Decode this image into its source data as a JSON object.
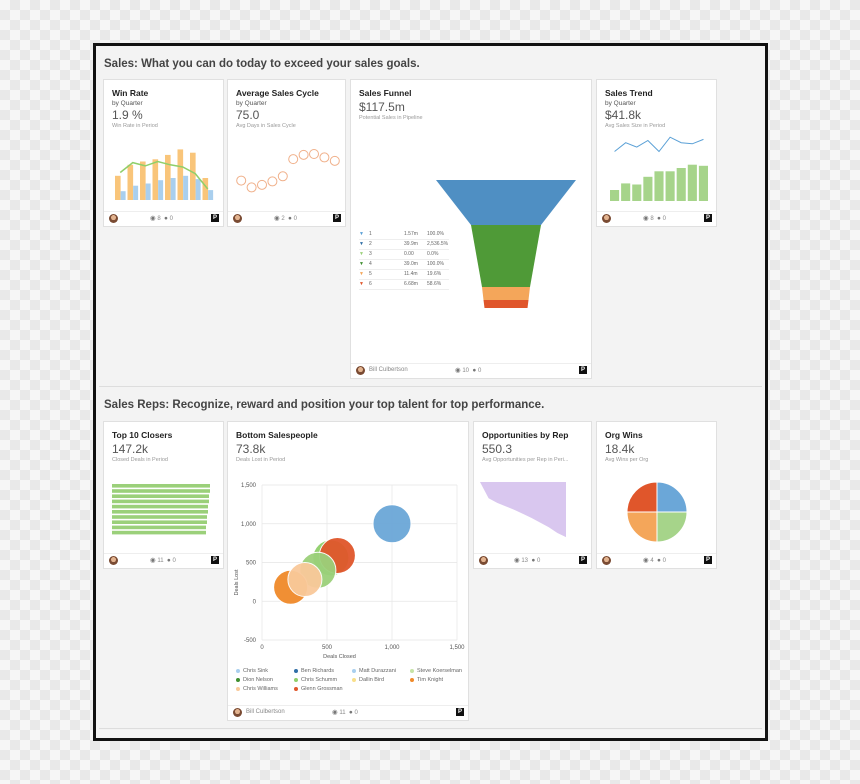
{
  "sections": {
    "sales": {
      "title": "Sales: What you can do today to exceed your sales goals."
    },
    "reps": {
      "title": "Sales Reps: Recognize, reward and position your top talent for top performance."
    }
  },
  "cards": {
    "win_rate": {
      "title": "Win Rate",
      "subtitle": "by Quarter",
      "value": "1.9 %",
      "desc": "Win Rate in Period",
      "views": "8",
      "comments": "0"
    },
    "avg_cycle": {
      "title": "Average Sales Cycle",
      "subtitle": "by Quarter",
      "value": "75.0",
      "desc": "Avg Days in Sales Cycle",
      "views": "2",
      "comments": "0"
    },
    "funnel": {
      "title": "Sales Funnel",
      "value": "$117.5m",
      "desc": "Potential Sales in Pipeline",
      "author": "Bill Culbertson",
      "views": "10",
      "comments": "0",
      "rows": [
        {
          "stage": "1",
          "amount": "1.57m",
          "pct": "100.0%",
          "color": "#5aa0d6"
        },
        {
          "stage": "2",
          "amount": "39.9m",
          "pct": "2,536.5%",
          "color": "#2f6ea6"
        },
        {
          "stage": "3",
          "amount": "0.00",
          "pct": "0.0%",
          "color": "#9bd07a"
        },
        {
          "stage": "4",
          "amount": "39.0m",
          "pct": "100.0%",
          "color": "#3f8f2f"
        },
        {
          "stage": "5",
          "amount": "11.4m",
          "pct": "19.6%",
          "color": "#f4a65a"
        },
        {
          "stage": "6",
          "amount": "6.68m",
          "pct": "58.6%",
          "color": "#e0562b"
        }
      ]
    },
    "trend": {
      "title": "Sales Trend",
      "subtitle": "by Quarter",
      "value": "$41.8k",
      "desc": "Avg Sales Size in Period",
      "views": "8",
      "comments": "0"
    },
    "top10": {
      "title": "Top 10 Closers",
      "value": "147.2k",
      "desc": "Closed Deals in Period",
      "views": "11",
      "comments": "0"
    },
    "bottom": {
      "title": "Bottom Salespeople",
      "value": "73.8k",
      "desc": "Deals Lost in Period",
      "author": "Bill Culbertson",
      "views": "11",
      "comments": "0",
      "xlabel": "Deals Closed",
      "ylabel": "Deals Lost",
      "legend": [
        {
          "name": "Chris Sink",
          "color": "#a9cfee"
        },
        {
          "name": "Ben Richards",
          "color": "#2f6ea6"
        },
        {
          "name": "Matt Durazzani",
          "color": "#a9cfee"
        },
        {
          "name": "Steve Koerselman",
          "color": "#c6e3a6"
        },
        {
          "name": "Dion Nelson",
          "color": "#3f8f2f"
        },
        {
          "name": "Chris Schumm",
          "color": "#8fcf6a"
        },
        {
          "name": "Dallin Bird",
          "color": "#f9df8a"
        },
        {
          "name": "Tim Knight",
          "color": "#f08a2a"
        },
        {
          "name": "Chris Williams",
          "color": "#f9c99a"
        },
        {
          "name": "Glenn Grossman",
          "color": "#e0562b"
        }
      ]
    },
    "opps": {
      "title": "Opportunities by Rep",
      "value": "550.3",
      "desc": "Avg Opportunities per Rep in Peri...",
      "views": "13",
      "comments": "0"
    },
    "org": {
      "title": "Org Wins",
      "value": "18.4k",
      "desc": "Avg Wins per Org",
      "views": "4",
      "comments": "0"
    }
  },
  "footer": {
    "badge": "P"
  },
  "chart_data": [
    {
      "type": "bar",
      "chart": "win_rate",
      "values": [
        2.2,
        3.2,
        3.5,
        3.7,
        4.1,
        4.6,
        4.3,
        2.0
      ],
      "values2": [
        0.8,
        1.3,
        1.5,
        1.8,
        2.0,
        2.2,
        1.9,
        0.9
      ],
      "line": [
        2.5,
        3.4,
        3.1,
        3.5,
        3.2,
        3.0,
        2.4,
        1.0
      ],
      "colors": [
        "#f9c57a",
        "#a9cfee",
        "#8fcf6a"
      ]
    },
    {
      "type": "scatter",
      "chart": "avg_cycle",
      "x": [
        1,
        2,
        3,
        4,
        5,
        6,
        7,
        8,
        9,
        10
      ],
      "y": [
        25,
        17,
        20,
        24,
        30,
        50,
        55,
        56,
        52,
        48
      ],
      "color": "#f0b08a"
    },
    {
      "type": "bar",
      "chart": "trend",
      "values": [
        1.0,
        1.6,
        1.5,
        2.2,
        2.7,
        2.7,
        3.0,
        3.3,
        3.2
      ],
      "line": [
        4.5,
        5.3,
        4.9,
        5.5,
        4.5,
        5.8,
        5.3,
        5.2,
        5.6
      ],
      "color": "#a6d48a",
      "linecolor": "#5aa0d6"
    },
    {
      "type": "bar",
      "chart": "top10",
      "orientation": "horizontal",
      "values": [
        98,
        98,
        97,
        97,
        96,
        96,
        95,
        95,
        94,
        94
      ],
      "color": "#9bd07a"
    },
    {
      "type": "scatter",
      "chart": "bottom",
      "xlim": [
        0,
        1500
      ],
      "ylim": [
        -500,
        1500
      ],
      "xticks": [
        "0",
        "500",
        "1,000",
        "1,500"
      ],
      "yticks": [
        "1,500",
        "1,000",
        "500",
        "0",
        "-500"
      ],
      "points": [
        {
          "x": 1000,
          "y": 1000,
          "r": 38,
          "color": "#6ba7d8"
        },
        {
          "x": 530,
          "y": 560,
          "r": 36,
          "color": "#8fcf6a"
        },
        {
          "x": 580,
          "y": 590,
          "r": 36,
          "color": "#e0562b"
        },
        {
          "x": 430,
          "y": 400,
          "r": 36,
          "color": "#9bd07a"
        },
        {
          "x": 220,
          "y": 180,
          "r": 34,
          "color": "#f08a2a"
        },
        {
          "x": 330,
          "y": 280,
          "r": 34,
          "color": "#f9c99a"
        }
      ]
    },
    {
      "type": "area",
      "chart": "opps",
      "values": [
        100,
        72,
        64,
        58,
        52,
        45,
        38,
        30,
        22,
        12,
        5
      ],
      "color": "#d9c7ef"
    },
    {
      "type": "pie",
      "chart": "org",
      "values": [
        25,
        25,
        25,
        25
      ],
      "colors": [
        "#6ba7d8",
        "#a6d48a",
        "#f4a65a",
        "#e0562b"
      ]
    }
  ]
}
